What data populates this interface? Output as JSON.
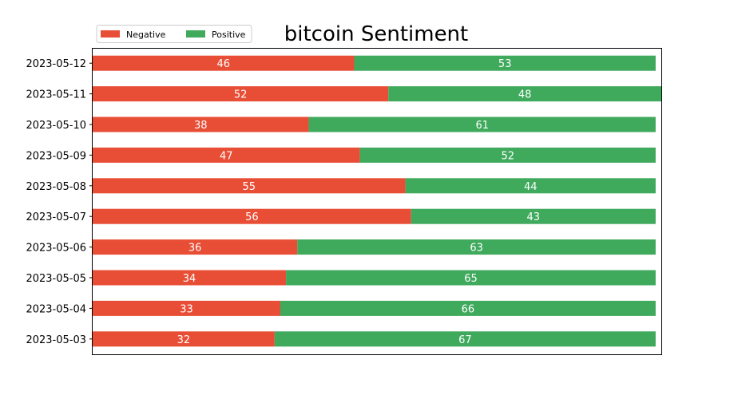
{
  "chart_data": {
    "type": "bar",
    "orientation": "horizontal",
    "stacked": true,
    "title": "bitcoin Sentiment",
    "xlabel": "",
    "ylabel": "",
    "categories": [
      "2023-05-12",
      "2023-05-11",
      "2023-05-10",
      "2023-05-09",
      "2023-05-08",
      "2023-05-07",
      "2023-05-06",
      "2023-05-05",
      "2023-05-04",
      "2023-05-03"
    ],
    "series": [
      {
        "name": "Negative",
        "color": "#e84e36",
        "values": [
          46,
          52,
          38,
          47,
          55,
          56,
          36,
          34,
          33,
          32
        ]
      },
      {
        "name": "Positive",
        "color": "#3fa95c",
        "values": [
          53,
          48,
          61,
          52,
          44,
          43,
          63,
          65,
          66,
          67
        ]
      }
    ],
    "xlim": [
      0,
      100
    ],
    "x_axis_visible": false,
    "grid": false,
    "legend_position": "top-left"
  }
}
